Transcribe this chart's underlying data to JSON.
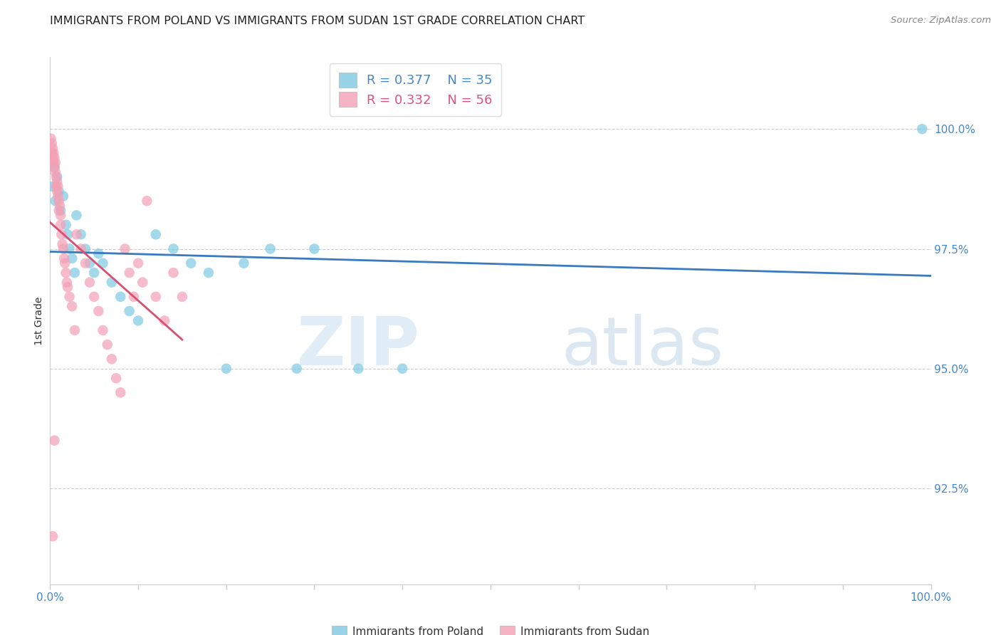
{
  "title": "IMMIGRANTS FROM POLAND VS IMMIGRANTS FROM SUDAN 1ST GRADE CORRELATION CHART",
  "source": "Source: ZipAtlas.com",
  "ylabel": "1st Grade",
  "ytick_values": [
    92.5,
    95.0,
    97.5,
    100.0
  ],
  "xlim": [
    0.0,
    100.0
  ],
  "ylim": [
    90.5,
    101.5
  ],
  "r_poland": 0.377,
  "n_poland": 35,
  "r_sudan": 0.332,
  "n_sudan": 56,
  "color_poland": "#7ec8e3",
  "color_sudan": "#f4a0b5",
  "line_color_poland": "#3a7abf",
  "line_color_sudan": "#d94f70",
  "watermark_zip": "ZIP",
  "watermark_atlas": "atlas",
  "legend_label_poland": "Immigrants from Poland",
  "legend_label_sudan": "Immigrants from Sudan",
  "poland_x": [
    0.3,
    0.5,
    0.6,
    0.8,
    1.0,
    1.2,
    1.5,
    1.8,
    2.0,
    2.2,
    2.5,
    2.8,
    3.0,
    3.5,
    4.0,
    4.5,
    5.0,
    5.5,
    6.0,
    7.0,
    8.0,
    9.0,
    10.0,
    12.0,
    14.0,
    16.0,
    18.0,
    20.0,
    22.0,
    25.0,
    28.0,
    30.0,
    35.0,
    40.0,
    99.0
  ],
  "poland_y": [
    98.8,
    99.2,
    98.5,
    99.0,
    98.7,
    98.3,
    98.6,
    98.0,
    97.8,
    97.5,
    97.3,
    97.0,
    98.2,
    97.8,
    97.5,
    97.2,
    97.0,
    97.4,
    97.2,
    96.8,
    96.5,
    96.2,
    96.0,
    97.8,
    97.5,
    97.2,
    97.0,
    95.0,
    97.2,
    97.5,
    95.0,
    97.5,
    95.0,
    95.0,
    100.0
  ],
  "sudan_x": [
    0.1,
    0.2,
    0.2,
    0.3,
    0.3,
    0.4,
    0.4,
    0.5,
    0.5,
    0.6,
    0.6,
    0.7,
    0.7,
    0.8,
    0.8,
    0.9,
    0.9,
    1.0,
    1.0,
    1.1,
    1.2,
    1.2,
    1.3,
    1.4,
    1.5,
    1.6,
    1.7,
    1.8,
    1.9,
    2.0,
    2.2,
    2.5,
    2.8,
    3.0,
    3.5,
    4.0,
    4.5,
    5.0,
    5.5,
    6.0,
    6.5,
    7.0,
    7.5,
    8.0,
    8.5,
    9.0,
    9.5,
    10.0,
    10.5,
    11.0,
    12.0,
    13.0,
    14.0,
    15.0,
    0.3,
    0.5
  ],
  "sudan_y": [
    99.8,
    99.7,
    99.5,
    99.6,
    99.4,
    99.5,
    99.3,
    99.4,
    99.2,
    99.3,
    99.1,
    99.0,
    98.8,
    98.9,
    98.7,
    98.8,
    98.6,
    98.5,
    98.3,
    98.4,
    98.2,
    98.0,
    97.8,
    97.6,
    97.5,
    97.3,
    97.2,
    97.0,
    96.8,
    96.7,
    96.5,
    96.3,
    95.8,
    97.8,
    97.5,
    97.2,
    96.8,
    96.5,
    96.2,
    95.8,
    95.5,
    95.2,
    94.8,
    94.5,
    97.5,
    97.0,
    96.5,
    97.2,
    96.8,
    98.5,
    96.5,
    96.0,
    97.0,
    96.5,
    91.5,
    93.5
  ],
  "title_fontsize": 12,
  "tick_color": "#4488cc",
  "label_color": "#333333",
  "grid_color": "#cccccc"
}
